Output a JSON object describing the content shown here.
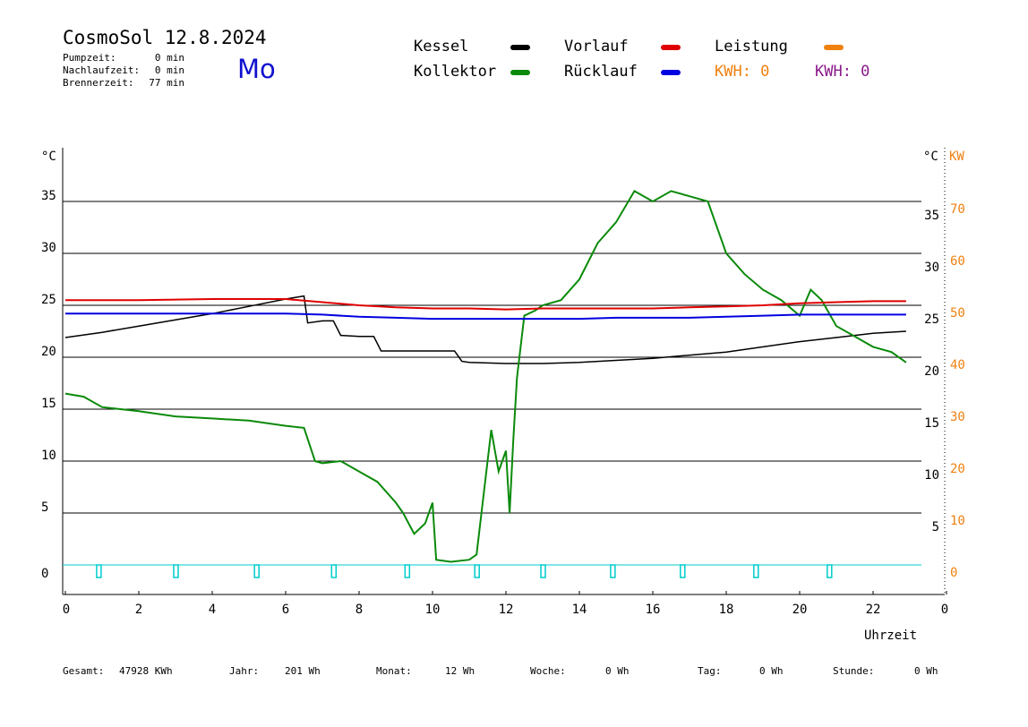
{
  "header": {
    "title": "CosmoSol 12.8.2024",
    "weekday": "Mo",
    "info": [
      {
        "label": "Pumpzeit:",
        "value": "0 min"
      },
      {
        "label": "Nachlaufzeit:",
        "value": "0 min"
      },
      {
        "label": "Brennerzeit:",
        "value": "77 min"
      }
    ]
  },
  "legend": {
    "items": [
      {
        "label": "Kessel",
        "color": "#000000"
      },
      {
        "label": "Kollektor",
        "color": "#0a8a0a"
      },
      {
        "label": "Vorlauf",
        "color": "#e00000"
      },
      {
        "label": "Rücklauf",
        "color": "#0000e0"
      },
      {
        "label": "Leistung",
        "color": "#f08010"
      }
    ],
    "kwh_orange": "KWH: 0",
    "kwh_purple": "KWH: 0",
    "kwh_orange_color": "#f08010",
    "kwh_purple_color": "#8a1a8a"
  },
  "footer": [
    {
      "label": "Gesamt:",
      "value": "47928 KWh"
    },
    {
      "label": "Jahr:",
      "value": "201 Wh"
    },
    {
      "label": "Monat:",
      "value": "12 Wh"
    },
    {
      "label": "Woche:",
      "value": "0 Wh"
    },
    {
      "label": "Tag:",
      "value": "0 Wh"
    },
    {
      "label": "Stunde:",
      "value": "0 Wh"
    }
  ],
  "chart_data": {
    "type": "line",
    "xlabel": "Uhrzeit",
    "ylabel_left": "°C",
    "ylabel_right_1": "°C",
    "ylabel_right_2": "KW",
    "xlim": [
      0,
      24
    ],
    "ylim": [
      -3,
      40
    ],
    "x_ticks": [
      "0",
      "2",
      "4",
      "6",
      "8",
      "10",
      "12",
      "14",
      "16",
      "18",
      "20",
      "22",
      "0"
    ],
    "y_ticks_left": [
      0,
      5,
      10,
      15,
      20,
      25,
      30,
      35
    ],
    "y_ticks_right_c": [
      5,
      10,
      15,
      20,
      25,
      30,
      35
    ],
    "y_ticks_right_kw": [
      0,
      10,
      20,
      30,
      40,
      50,
      60,
      70
    ],
    "grid": "horizontal",
    "series": [
      {
        "name": "Kessel",
        "color": "#000000",
        "x": [
          0,
          1,
          2,
          3,
          4,
          5,
          6,
          6.5,
          6.6,
          7,
          7.3,
          7.5,
          8,
          8.4,
          8.6,
          9,
          10,
          10.6,
          10.8,
          11,
          12,
          13,
          14,
          16,
          18,
          20,
          21,
          22,
          22.9
        ],
        "y": [
          21.9,
          22.4,
          23.0,
          23.6,
          24.2,
          24.9,
          25.6,
          25.9,
          23.3,
          23.5,
          23.5,
          22.1,
          22.0,
          22.0,
          20.6,
          20.6,
          20.6,
          20.6,
          19.6,
          19.5,
          19.4,
          19.4,
          19.5,
          19.9,
          20.5,
          21.5,
          21.9,
          22.3,
          22.5
        ]
      },
      {
        "name": "Kollektor",
        "color": "#0a8a0a",
        "x": [
          0,
          0.5,
          1,
          1.5,
          2,
          3,
          4,
          5,
          6,
          6.5,
          6.8,
          7,
          7.5,
          8,
          8.5,
          9,
          9.2,
          9.5,
          9.8,
          10,
          10.1,
          10.5,
          11,
          11.2,
          11.4,
          11.6,
          11.8,
          12,
          12.1,
          12.2,
          12.3,
          12.5,
          12.8,
          13,
          13.5,
          14,
          14.5,
          15,
          15.5,
          16,
          16.5,
          17,
          17.5,
          18,
          18.5,
          19,
          19.5,
          20,
          20.3,
          20.6,
          21,
          21.5,
          22,
          22.5,
          22.9
        ],
        "y": [
          16.5,
          16.2,
          15.2,
          15.0,
          14.8,
          14.3,
          14.1,
          13.9,
          13.4,
          13.2,
          10.0,
          9.8,
          10.0,
          9.0,
          8.0,
          6.0,
          5.0,
          3.0,
          4.0,
          6.0,
          0.5,
          0.3,
          0.5,
          1.0,
          7.0,
          13.0,
          9.0,
          11.0,
          5.0,
          12.0,
          18.0,
          24.0,
          24.5,
          25.0,
          25.5,
          27.5,
          31.0,
          33.0,
          36.0,
          35.0,
          36.0,
          35.5,
          35.0,
          30.0,
          28.0,
          26.5,
          25.5,
          24.0,
          26.5,
          25.5,
          23.0,
          22.0,
          21.0,
          20.5,
          19.5
        ]
      },
      {
        "name": "Vorlauf",
        "color": "#e00000",
        "x": [
          0,
          2,
          4,
          6,
          7,
          8,
          9,
          10,
          11,
          12,
          13,
          14,
          15,
          16,
          17,
          18,
          19,
          20,
          21,
          22,
          22.9
        ],
        "y": [
          25.5,
          25.5,
          25.6,
          25.6,
          25.3,
          25.0,
          24.8,
          24.7,
          24.7,
          24.6,
          24.7,
          24.7,
          24.7,
          24.7,
          24.8,
          24.9,
          25.0,
          25.2,
          25.3,
          25.4,
          25.4
        ]
      },
      {
        "name": "Rücklauf",
        "color": "#0000e0",
        "x": [
          0,
          2,
          4,
          6,
          7,
          8,
          9,
          10,
          11,
          12,
          13,
          14,
          15,
          16,
          17,
          18,
          19,
          20,
          21,
          22,
          22.9
        ],
        "y": [
          24.2,
          24.2,
          24.2,
          24.2,
          24.1,
          23.9,
          23.8,
          23.7,
          23.7,
          23.7,
          23.7,
          23.7,
          23.8,
          23.8,
          23.8,
          23.9,
          24.0,
          24.1,
          24.1,
          24.1,
          24.1
        ]
      },
      {
        "name": "Leistung",
        "color": "#00cccc",
        "x": [
          0,
          22.9
        ],
        "y": [
          0,
          0
        ]
      }
    ],
    "pump_markers_x": [
      0.9,
      3.0,
      5.2,
      7.3,
      9.3,
      11.2,
      13.0,
      14.9,
      16.8,
      18.8,
      20.8
    ]
  }
}
